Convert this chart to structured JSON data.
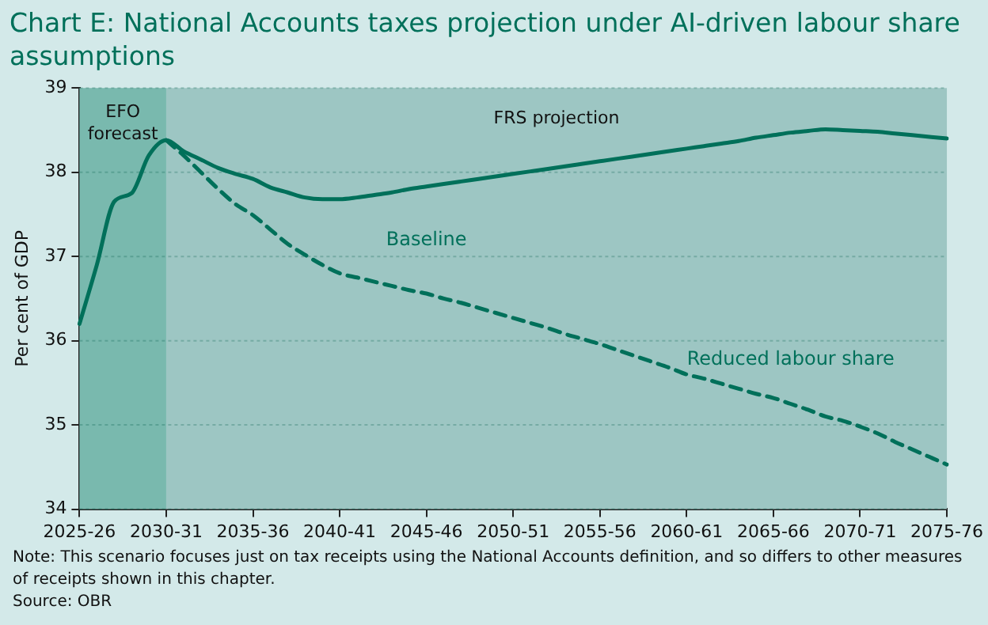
{
  "chart_data": {
    "type": "line",
    "title": "Chart E: National Accounts taxes projection under AI-driven labour share assumptions",
    "ylabel": "Per cent of GDP",
    "categories": [
      "2025-26",
      null,
      null,
      null,
      null,
      "2030-31",
      null,
      null,
      null,
      null,
      "2035-36",
      null,
      null,
      null,
      null,
      "2040-41",
      null,
      null,
      null,
      null,
      "2045-46",
      null,
      null,
      null,
      null,
      "2050-51",
      null,
      null,
      null,
      null,
      "2055-56",
      null,
      null,
      null,
      null,
      "2060-61",
      null,
      null,
      null,
      null,
      "2065-66",
      null,
      null,
      null,
      null,
      "2070-71",
      null,
      null,
      null,
      null,
      "2075-76"
    ],
    "series": [
      {
        "name": "Baseline",
        "color": "#00705a",
        "line_style": "solid",
        "values": [
          36.2,
          36.9,
          37.65,
          37.75,
          38.2,
          38.38,
          38.25,
          38.15,
          38.05,
          37.98,
          37.92,
          37.82,
          37.76,
          37.7,
          37.68,
          37.68,
          37.7,
          37.73,
          37.76,
          37.8,
          37.83,
          37.86,
          37.89,
          37.92,
          37.95,
          37.98,
          38.01,
          38.04,
          38.07,
          38.1,
          38.13,
          38.16,
          38.19,
          38.22,
          38.25,
          38.28,
          38.31,
          38.34,
          38.37,
          38.41,
          38.44,
          38.47,
          38.49,
          38.51,
          38.5,
          38.49,
          38.48,
          38.46,
          38.44,
          38.42,
          38.4
        ]
      },
      {
        "name": "Reduced labour share",
        "color": "#00705a",
        "line_style": "dashed",
        "values": [
          null,
          null,
          null,
          null,
          null,
          38.38,
          38.2,
          38.0,
          37.8,
          37.62,
          37.49,
          37.32,
          37.15,
          37.02,
          36.9,
          36.8,
          36.75,
          36.7,
          36.65,
          36.6,
          36.56,
          36.5,
          36.45,
          36.39,
          36.33,
          36.27,
          36.21,
          36.15,
          36.08,
          36.02,
          35.96,
          35.89,
          35.82,
          35.75,
          35.68,
          35.6,
          35.55,
          35.49,
          35.43,
          35.37,
          35.32,
          35.25,
          35.18,
          35.1,
          35.05,
          34.98,
          34.9,
          34.8,
          34.71,
          34.62,
          34.53
        ]
      }
    ],
    "ylim": [
      34,
      39
    ],
    "yticks": [
      34,
      35,
      36,
      37,
      38,
      39
    ],
    "grid": "y",
    "legend": false,
    "marker": "none",
    "bands": [
      {
        "axis": "x",
        "from": "2025-26",
        "to": "2030-31",
        "label": "EFO forecast",
        "color": "#79b9ae"
      },
      {
        "axis": "x",
        "from": "2030-31",
        "to": "2075-76",
        "label": "FRS projection",
        "color": "#9dc6c3"
      }
    ],
    "annotations": [
      "Note: This scenario focuses just on tax receipts using the National Accounts definition, and so differs to other measures of receipts shown in this chapter.",
      "Source: OBR"
    ]
  }
}
